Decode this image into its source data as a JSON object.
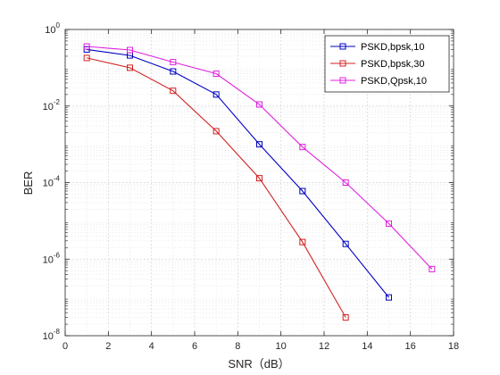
{
  "chart_data": {
    "type": "line",
    "title": "",
    "xlabel": "SNR（dB）",
    "ylabel": "BER",
    "xlim": [
      0,
      18
    ],
    "ylim": [
      1e-08,
      1
    ],
    "yscale": "log",
    "grid": true,
    "minor_grid": true,
    "legend_position": "top-right",
    "x_ticks": [
      0,
      2,
      4,
      6,
      8,
      10,
      12,
      14,
      16,
      18
    ],
    "y_ticks": [
      {
        "exp": 0,
        "value": 1
      },
      {
        "exp": -2,
        "value": 0.01
      },
      {
        "exp": -4,
        "value": 0.0001
      },
      {
        "exp": -6,
        "value": 1e-06
      },
      {
        "exp": -8,
        "value": 1e-08
      }
    ],
    "tick_base": "10",
    "series": [
      {
        "name": "PSKD,bpsk,10",
        "color": "#0000c0",
        "marker": "square",
        "x": [
          1,
          3,
          5,
          7,
          9,
          11,
          13,
          15
        ],
        "y": [
          0.3,
          0.21,
          0.08,
          0.02,
          0.001,
          6e-05,
          2.5e-06,
          1e-07
        ]
      },
      {
        "name": "PSKD,bpsk,30",
        "color": "#d42020",
        "marker": "square",
        "x": [
          1,
          3,
          5,
          7,
          9,
          11,
          13
        ],
        "y": [
          0.18,
          0.1,
          0.025,
          0.0022,
          0.00013,
          2.8e-06,
          3e-08
        ]
      },
      {
        "name": "PSKD,Qpsk,10",
        "color": "#e020e0",
        "marker": "square",
        "x": [
          1,
          3,
          5,
          7,
          9,
          11,
          13,
          15,
          17
        ],
        "y": [
          0.36,
          0.29,
          0.14,
          0.07,
          0.011,
          0.00085,
          0.0001,
          8.5e-06,
          5.5e-07
        ]
      }
    ]
  }
}
